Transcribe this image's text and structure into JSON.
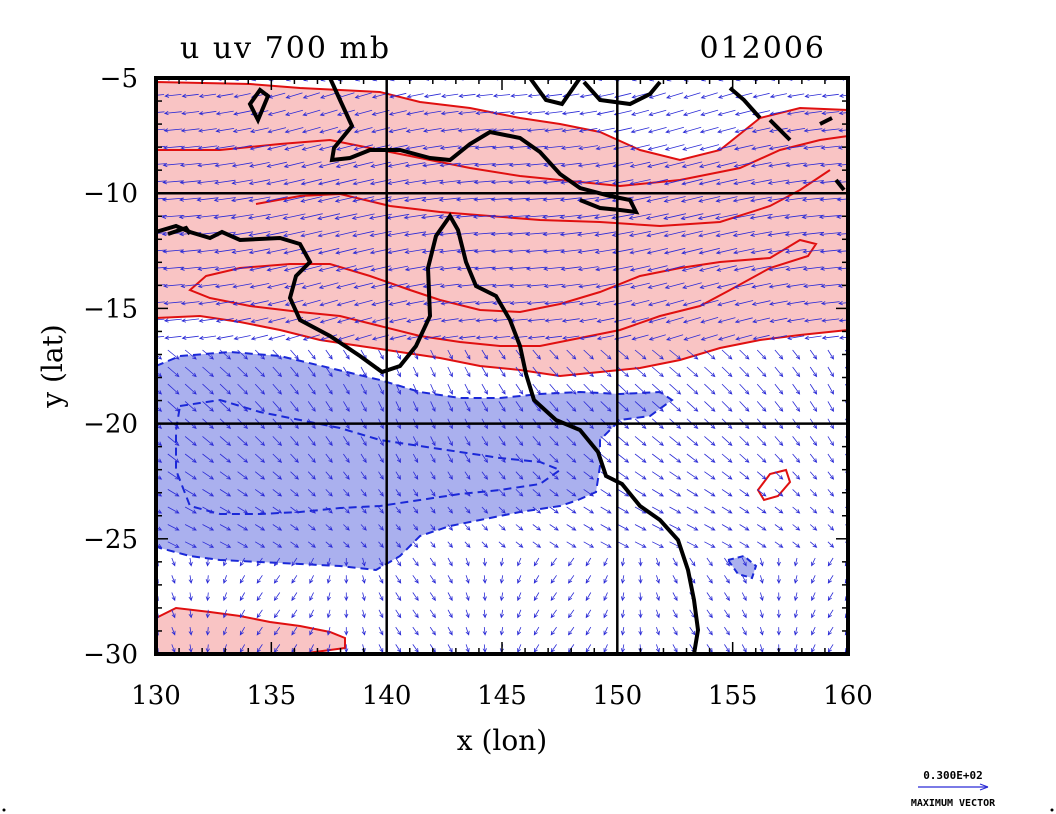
{
  "chart_data": {
    "type": "contour-vector map",
    "title": "u uv 700 mb",
    "date_label": "012006",
    "xlabel": "x (lon)",
    "ylabel": "y (lat)",
    "xlim": [
      130,
      160
    ],
    "ylim": [
      -30,
      -5
    ],
    "x_ticks": [
      130,
      135,
      140,
      145,
      150,
      155,
      160
    ],
    "y_ticks": [
      -5,
      -10,
      -15,
      -20,
      -25,
      -30
    ],
    "x_tick_labels": [
      "130",
      "135",
      "140",
      "145",
      "150",
      "155",
      "160"
    ],
    "y_tick_labels": [
      "−5",
      "−10",
      "−15",
      "−20",
      "−25",
      "−30"
    ],
    "grid_x": [
      140,
      150
    ],
    "grid_y": [
      -10,
      -20
    ],
    "vector_legend": {
      "value": "0.300E+02",
      "label": "MAXIMUM VECTOR"
    },
    "colors": {
      "positive_fill": "#f9c4c4",
      "positive_line": "#e01010",
      "negative_fill": "#aab0ee",
      "negative_line": "#1a28d8",
      "vectors": "#2a2ad6",
      "coastline": "#000000",
      "frame": "#000000"
    }
  }
}
